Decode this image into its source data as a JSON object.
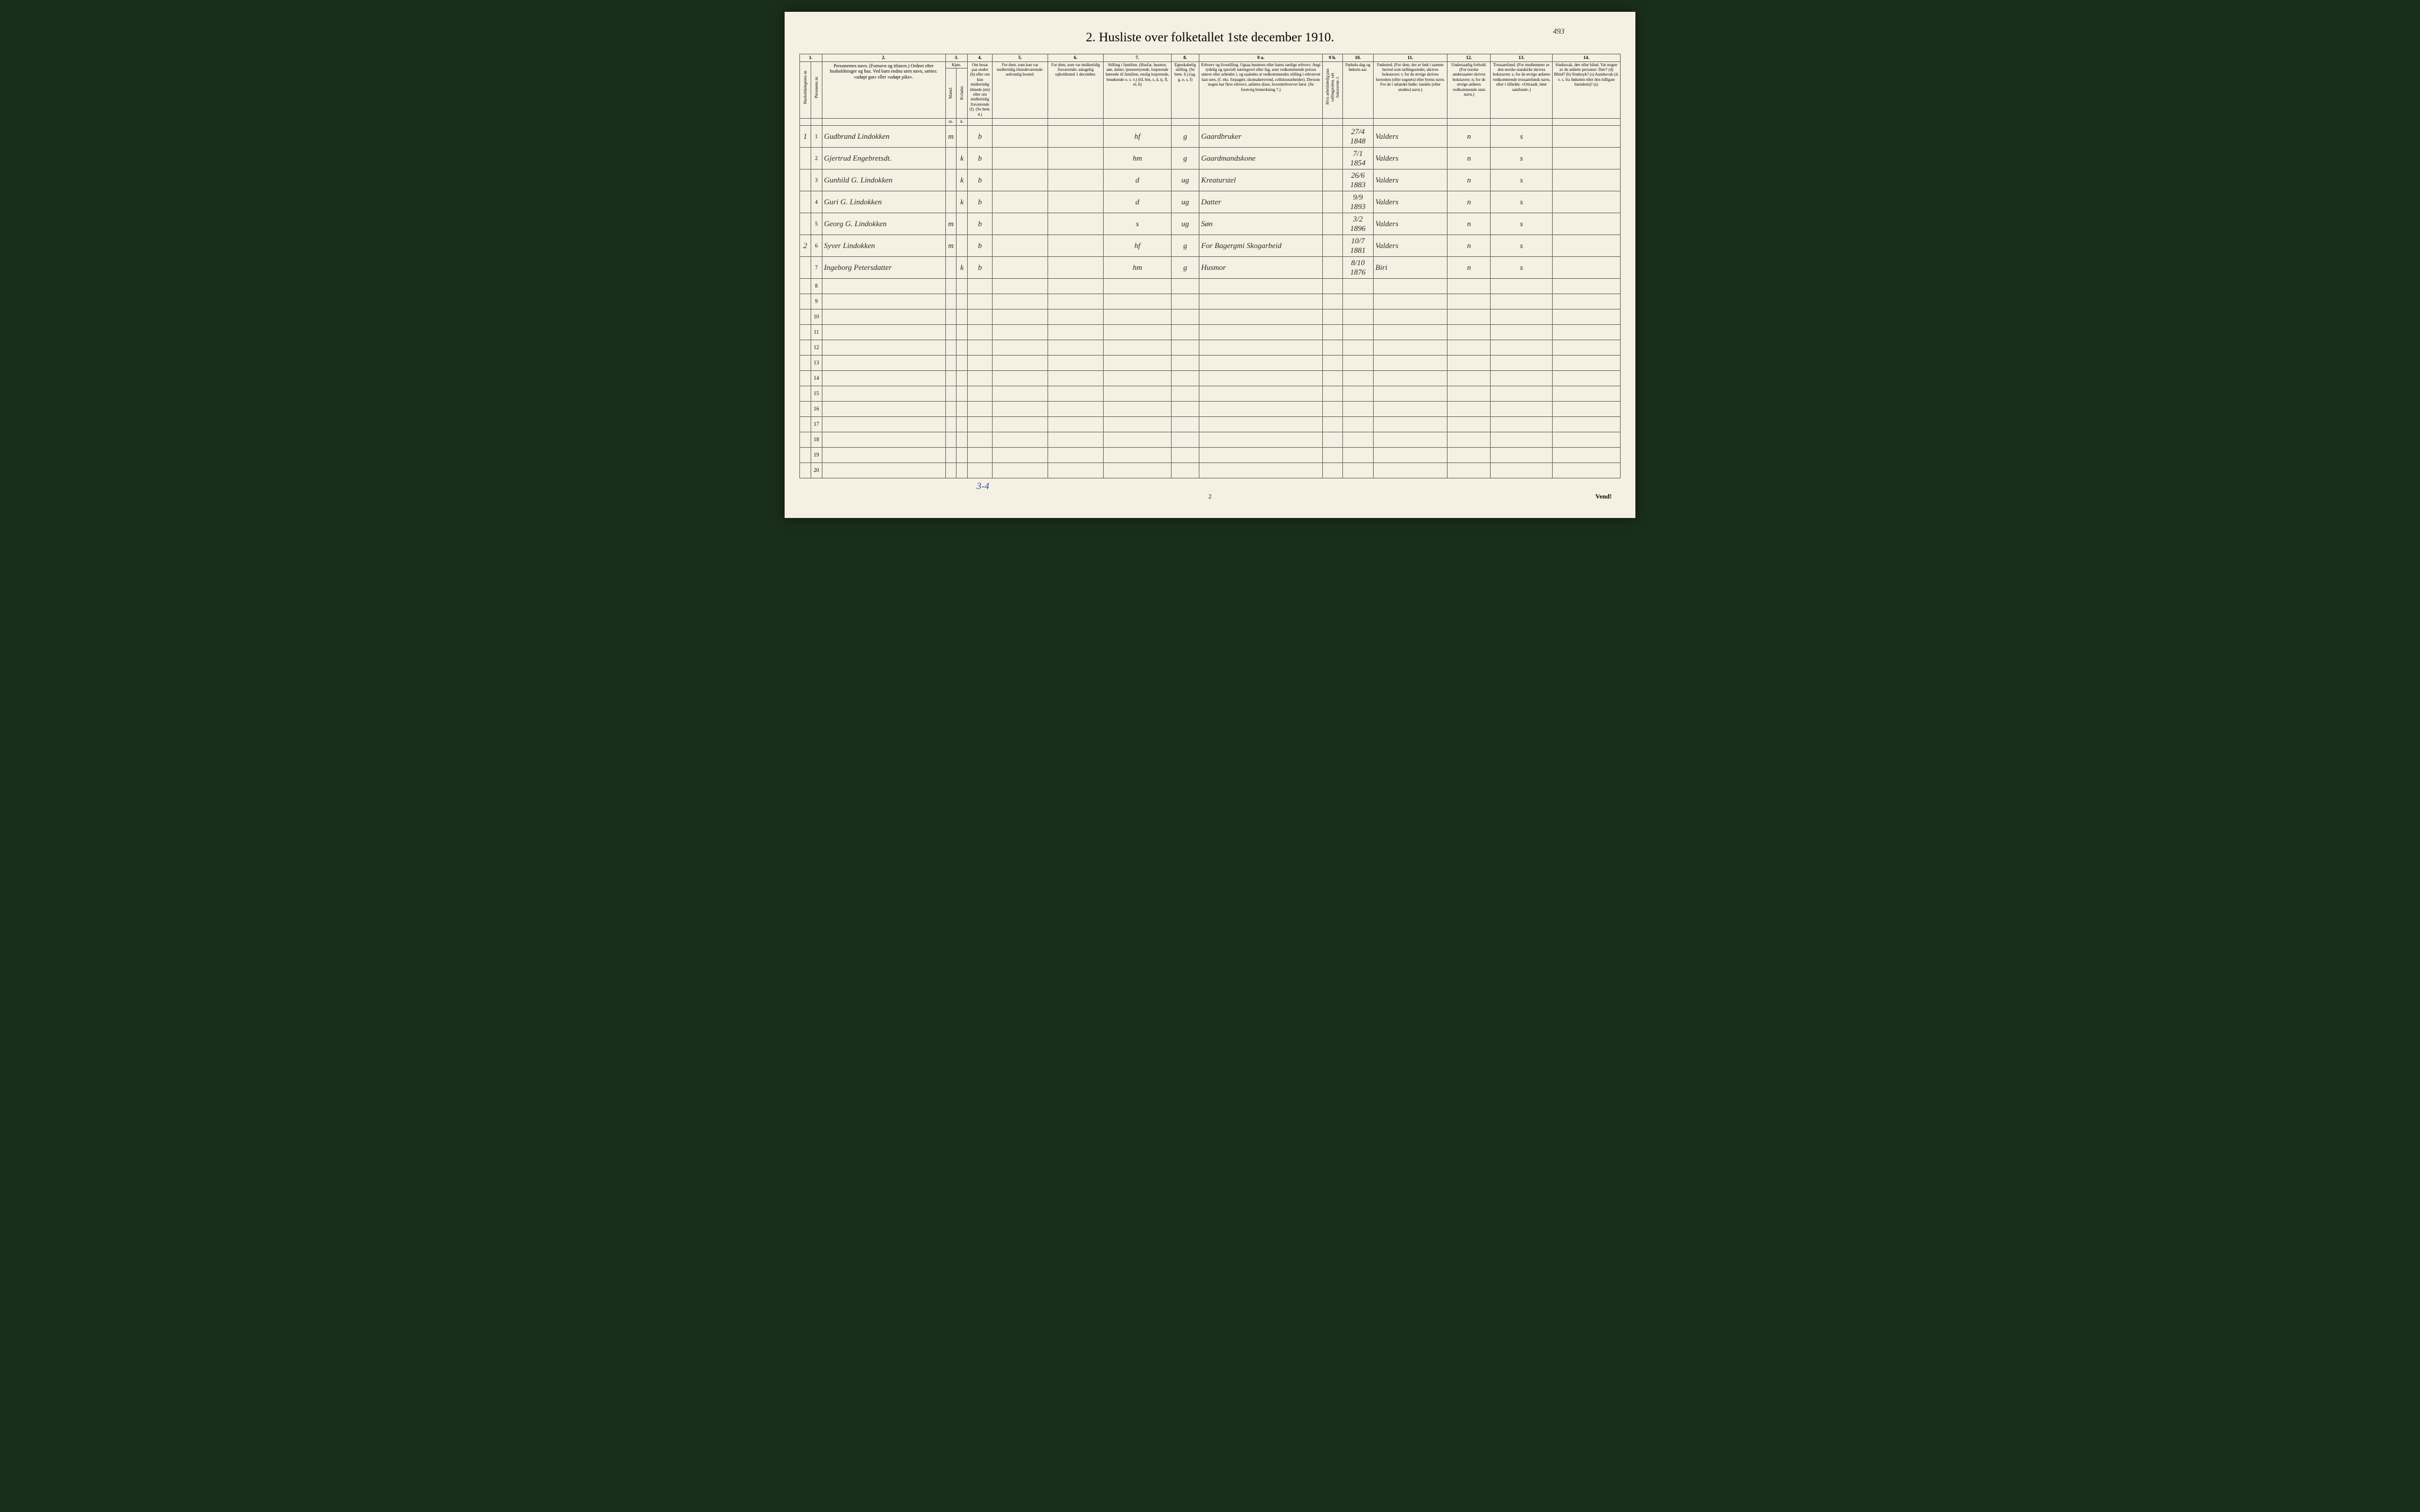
{
  "title": "2. Husliste over folketallet 1ste december 1910.",
  "handwritten_top": "493",
  "column_numbers": [
    "1.",
    "2.",
    "3.",
    "4.",
    "5.",
    "6.",
    "7.",
    "8.",
    "9 a.",
    "9 b.",
    "10.",
    "11.",
    "12.",
    "13.",
    "14."
  ],
  "headers": {
    "husholdning": "Husholdningenes nr.",
    "person": "Personens nr.",
    "navn": "Personernes navn.\n(Fornavn og tilnavn.)\nOrdnet efter husholdninger og hus.\nVed barn endnu uten navn, sættes: «udøpt gut» eller «udøpt pike».",
    "kjon": "Kjøn.",
    "mand": "Mænd.",
    "kvinder": "Kvinder.",
    "bosatt": "Om bosat paa stedet (b) eller om kun midlertidig tilstede (mt) eller om midlertidig fraværende (f). (Se bem. 4.)",
    "midl_til": "For dem, som kun var midlertidig tilstedeværende:\nsedvanlig bosted.",
    "midl_fra": "For dem, som var midlertidig fraværende:\nantagelig opholdssted 1 december.",
    "stilling": "Stilling i familien.\n(Husfar, husmor, søn, datter, tjenestetyende, losjerende hørende til familien, enslig losjerende, besøkende o. s. v.)\n(hf, hm, s, d, tj, fl, el, b)",
    "egtesk": "Egteskabelig stilling.\n(Se bem. 6.)\n(ug, g, e, s, f)",
    "erhverv": "Erhverv og livsstilling.\nOgsaa husmors eller barns særlige erhverv.\nAngi tydelig og specielt næringsvei eller fag, som vedkommende person utøver eller arbeider i, og saaledes at vedkommendes stilling i erhvervet kan sees, (f. eks. forpagter, skomakersvend, cellulosearbeider). Dersom nogen har flere erhverv, anføres disse, hovederhvervet først.\n(Se forøvrig bemerkning 7.)",
    "arbeidsledig": "Hvis arbeidsledig paa tællingstiden, sæt bokstaven: l.",
    "fodsel": "Fødsels-dag og fødsels-aar.",
    "fodested": "Fødested.\n(For dem, der er født i samme herred som tællingsstedet, skrives bokstaven: t; for de øvrige skrives herredets (eller sognets) eller byens navn.\nFor de i utlandet fødte: landets (eller stedets) navn.)",
    "undersaat": "Undersaatlig forhold.\n(For norske undersaatter skrives bokstaven: n; for de øvrige anføres vedkommende stats navn.)",
    "trossamfund": "Trossamfund.\n(For medlemmer av den norske statskirke skrives bokstaven: s; for de øvrige anføres vedkommende trossamfunds navn, eller i tilfælde: «Uttraadt, intet samfund».)",
    "sindssvak": "Sindssvak, døv eller blind.\nVar nogen av de anførte personer:\nDøv? (d)\nBlind? (b)\nSindssyk? (s)\nAandssvak (d. v. s. fra fødselen eller den tidligste barndom)? (a)"
  },
  "rows": [
    {
      "hus": "1",
      "pers": "1",
      "navn": "Gudbrand Lindokken",
      "kjon_m": "m",
      "kjon_k": "",
      "bosatt": "b",
      "stilling": "hf",
      "egtesk": "g",
      "erhverv": "Gaardbruker",
      "fodsel": "27/4 1848",
      "fodested": "Valders",
      "undersaat": "n",
      "tros": "s"
    },
    {
      "hus": "",
      "pers": "2",
      "navn": "Gjertrud Engebretsdt.",
      "kjon_m": "",
      "kjon_k": "k",
      "bosatt": "b",
      "stilling": "hm",
      "egtesk": "g",
      "erhverv": "Gaardmandskone",
      "fodsel": "7/1 1854",
      "fodested": "Valders",
      "undersaat": "n",
      "tros": "s"
    },
    {
      "hus": "",
      "pers": "3",
      "navn": "Gunhild G. Lindokken",
      "kjon_m": "",
      "kjon_k": "k",
      "bosatt": "b",
      "stilling": "d",
      "egtesk": "ug",
      "erhverv": "Kreaturstel",
      "fodsel": "26/6 1883",
      "fodested": "Valders",
      "undersaat": "n",
      "tros": "s"
    },
    {
      "hus": "",
      "pers": "4",
      "navn": "Guri G. Lindokken",
      "kjon_m": "",
      "kjon_k": "k",
      "bosatt": "b",
      "stilling": "d",
      "egtesk": "ug",
      "erhverv": "Datter",
      "fodsel": "9/9 1893",
      "fodested": "Valders",
      "undersaat": "n",
      "tros": "s"
    },
    {
      "hus": "",
      "pers": "5",
      "navn": "Georg G. Lindokken",
      "kjon_m": "m",
      "kjon_k": "",
      "bosatt": "b",
      "stilling": "s",
      "egtesk": "ug",
      "erhverv": "Søn",
      "fodsel": "3/2 1896",
      "fodested": "Valders",
      "undersaat": "n",
      "tros": "s"
    },
    {
      "hus": "2",
      "pers": "6",
      "navn": "Syver Lindokken",
      "kjon_m": "m",
      "kjon_k": "",
      "bosatt": "b",
      "stilling": "hf",
      "egtesk": "g",
      "erhverv": "For Bagergmi Skogarbeid",
      "fodsel": "10/7 1881",
      "fodested": "Valders",
      "undersaat": "n",
      "tros": "s"
    },
    {
      "hus": "",
      "pers": "7",
      "navn": "Ingeborg Petersdatter",
      "kjon_m": "",
      "kjon_k": "k",
      "bosatt": "b",
      "stilling": "hm",
      "egtesk": "g",
      "erhverv": "Husmor",
      "fodsel": "8/10 1876",
      "fodested": "Biri",
      "undersaat": "n",
      "tros": "s"
    }
  ],
  "empty_row_numbers": [
    "8",
    "9",
    "10",
    "11",
    "12",
    "13",
    "14",
    "15",
    "16",
    "17",
    "18",
    "19",
    "20"
  ],
  "bottom_annotation": "3-4",
  "page_bottom": "2",
  "vend_text": "Vend!",
  "colors": {
    "page_bg": "#f5f0e1",
    "outer_bg": "#1a2f1a",
    "border": "#666666",
    "text": "#2a2a2a",
    "annotation_blue": "#3344aa"
  }
}
